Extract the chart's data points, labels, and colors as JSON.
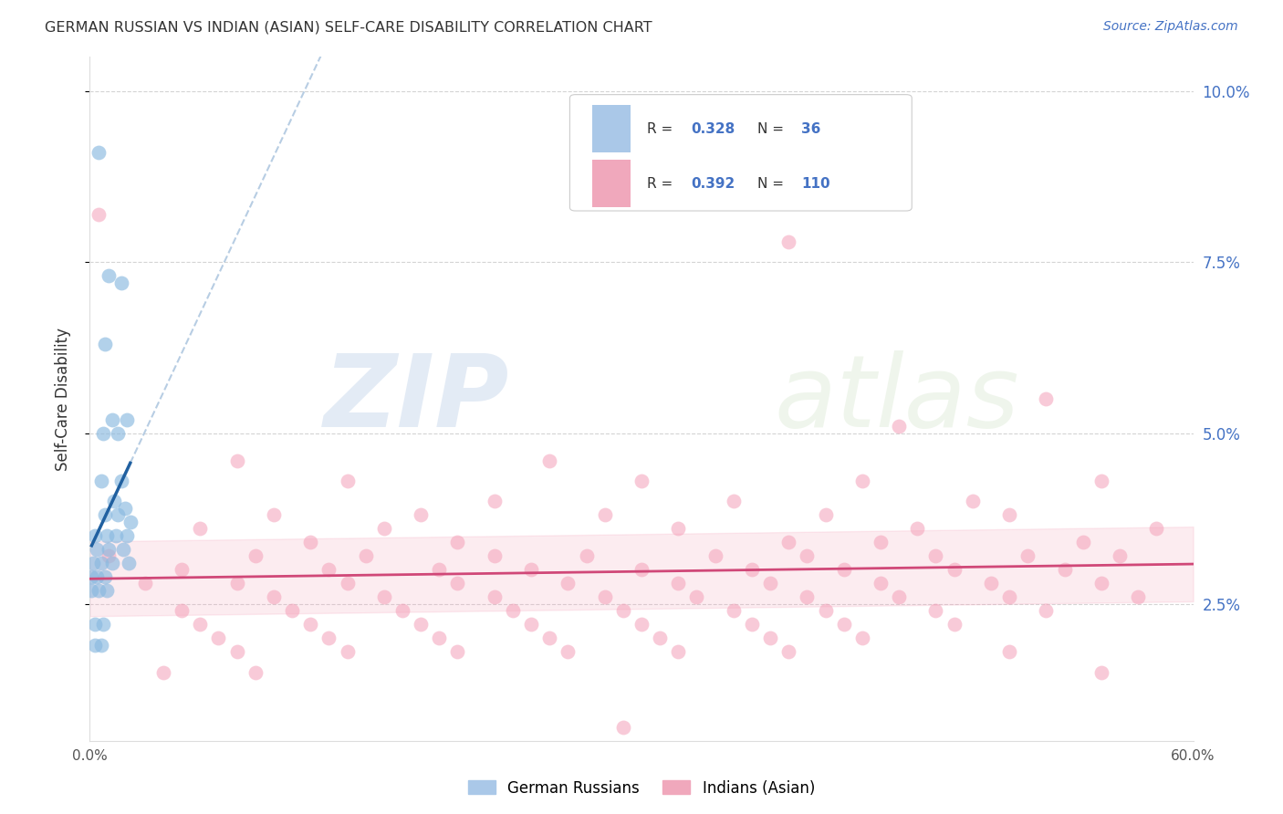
{
  "title": "GERMAN RUSSIAN VS INDIAN (ASIAN) SELF-CARE DISABILITY CORRELATION CHART",
  "source": "Source: ZipAtlas.com",
  "ylabel": "Self-Care Disability",
  "xlim": [
    0,
    0.6
  ],
  "ylim": [
    0.005,
    0.105
  ],
  "xticks": [
    0.0,
    0.1,
    0.2,
    0.3,
    0.4,
    0.5,
    0.6
  ],
  "xticklabels": [
    "0.0%",
    "",
    "",
    "",
    "",
    "",
    "60.0%"
  ],
  "yticks": [
    0.025,
    0.05,
    0.075,
    0.1
  ],
  "yticklabels": [
    "2.5%",
    "5.0%",
    "7.5%",
    "10.0%"
  ],
  "background_color": "#ffffff",
  "grid_color": "#d0d0d0",
  "watermark_zip": "ZIP",
  "watermark_atlas": "atlas",
  "blue_color": "#89b9e0",
  "pink_color": "#f4a0b8",
  "blue_line_color": "#2060a0",
  "pink_line_color": "#d04878",
  "blue_scatter": [
    [
      0.005,
      0.091
    ],
    [
      0.01,
      0.073
    ],
    [
      0.017,
      0.072
    ],
    [
      0.008,
      0.063
    ],
    [
      0.012,
      0.052
    ],
    [
      0.02,
      0.052
    ],
    [
      0.007,
      0.05
    ],
    [
      0.015,
      0.05
    ],
    [
      0.006,
      0.043
    ],
    [
      0.017,
      0.043
    ],
    [
      0.013,
      0.04
    ],
    [
      0.019,
      0.039
    ],
    [
      0.008,
      0.038
    ],
    [
      0.015,
      0.038
    ],
    [
      0.022,
      0.037
    ],
    [
      0.003,
      0.035
    ],
    [
      0.009,
      0.035
    ],
    [
      0.014,
      0.035
    ],
    [
      0.02,
      0.035
    ],
    [
      0.004,
      0.033
    ],
    [
      0.01,
      0.033
    ],
    [
      0.018,
      0.033
    ],
    [
      0.002,
      0.031
    ],
    [
      0.006,
      0.031
    ],
    [
      0.012,
      0.031
    ],
    [
      0.021,
      0.031
    ],
    [
      0.001,
      0.029
    ],
    [
      0.004,
      0.029
    ],
    [
      0.008,
      0.029
    ],
    [
      0.001,
      0.027
    ],
    [
      0.005,
      0.027
    ],
    [
      0.009,
      0.027
    ],
    [
      0.003,
      0.022
    ],
    [
      0.007,
      0.022
    ],
    [
      0.003,
      0.019
    ],
    [
      0.006,
      0.019
    ]
  ],
  "pink_scatter": [
    [
      0.005,
      0.082
    ],
    [
      0.38,
      0.078
    ],
    [
      0.52,
      0.055
    ],
    [
      0.44,
      0.051
    ],
    [
      0.08,
      0.046
    ],
    [
      0.25,
      0.046
    ],
    [
      0.14,
      0.043
    ],
    [
      0.3,
      0.043
    ],
    [
      0.42,
      0.043
    ],
    [
      0.55,
      0.043
    ],
    [
      0.22,
      0.04
    ],
    [
      0.35,
      0.04
    ],
    [
      0.48,
      0.04
    ],
    [
      0.1,
      0.038
    ],
    [
      0.18,
      0.038
    ],
    [
      0.28,
      0.038
    ],
    [
      0.4,
      0.038
    ],
    [
      0.5,
      0.038
    ],
    [
      0.06,
      0.036
    ],
    [
      0.16,
      0.036
    ],
    [
      0.32,
      0.036
    ],
    [
      0.45,
      0.036
    ],
    [
      0.58,
      0.036
    ],
    [
      0.12,
      0.034
    ],
    [
      0.2,
      0.034
    ],
    [
      0.38,
      0.034
    ],
    [
      0.43,
      0.034
    ],
    [
      0.54,
      0.034
    ],
    [
      0.01,
      0.032
    ],
    [
      0.09,
      0.032
    ],
    [
      0.15,
      0.032
    ],
    [
      0.22,
      0.032
    ],
    [
      0.27,
      0.032
    ],
    [
      0.34,
      0.032
    ],
    [
      0.39,
      0.032
    ],
    [
      0.46,
      0.032
    ],
    [
      0.51,
      0.032
    ],
    [
      0.56,
      0.032
    ],
    [
      0.05,
      0.03
    ],
    [
      0.13,
      0.03
    ],
    [
      0.19,
      0.03
    ],
    [
      0.24,
      0.03
    ],
    [
      0.3,
      0.03
    ],
    [
      0.36,
      0.03
    ],
    [
      0.41,
      0.03
    ],
    [
      0.47,
      0.03
    ],
    [
      0.53,
      0.03
    ],
    [
      0.03,
      0.028
    ],
    [
      0.08,
      0.028
    ],
    [
      0.14,
      0.028
    ],
    [
      0.2,
      0.028
    ],
    [
      0.26,
      0.028
    ],
    [
      0.32,
      0.028
    ],
    [
      0.37,
      0.028
    ],
    [
      0.43,
      0.028
    ],
    [
      0.49,
      0.028
    ],
    [
      0.55,
      0.028
    ],
    [
      0.1,
      0.026
    ],
    [
      0.16,
      0.026
    ],
    [
      0.22,
      0.026
    ],
    [
      0.28,
      0.026
    ],
    [
      0.33,
      0.026
    ],
    [
      0.39,
      0.026
    ],
    [
      0.44,
      0.026
    ],
    [
      0.5,
      0.026
    ],
    [
      0.57,
      0.026
    ],
    [
      0.05,
      0.024
    ],
    [
      0.11,
      0.024
    ],
    [
      0.17,
      0.024
    ],
    [
      0.23,
      0.024
    ],
    [
      0.29,
      0.024
    ],
    [
      0.35,
      0.024
    ],
    [
      0.4,
      0.024
    ],
    [
      0.46,
      0.024
    ],
    [
      0.52,
      0.024
    ],
    [
      0.06,
      0.022
    ],
    [
      0.12,
      0.022
    ],
    [
      0.18,
      0.022
    ],
    [
      0.24,
      0.022
    ],
    [
      0.3,
      0.022
    ],
    [
      0.36,
      0.022
    ],
    [
      0.41,
      0.022
    ],
    [
      0.47,
      0.022
    ],
    [
      0.07,
      0.02
    ],
    [
      0.13,
      0.02
    ],
    [
      0.19,
      0.02
    ],
    [
      0.25,
      0.02
    ],
    [
      0.31,
      0.02
    ],
    [
      0.37,
      0.02
    ],
    [
      0.42,
      0.02
    ],
    [
      0.08,
      0.018
    ],
    [
      0.14,
      0.018
    ],
    [
      0.2,
      0.018
    ],
    [
      0.26,
      0.018
    ],
    [
      0.32,
      0.018
    ],
    [
      0.38,
      0.018
    ],
    [
      0.5,
      0.018
    ],
    [
      0.04,
      0.015
    ],
    [
      0.09,
      0.015
    ],
    [
      0.55,
      0.015
    ],
    [
      0.29,
      0.007
    ]
  ]
}
